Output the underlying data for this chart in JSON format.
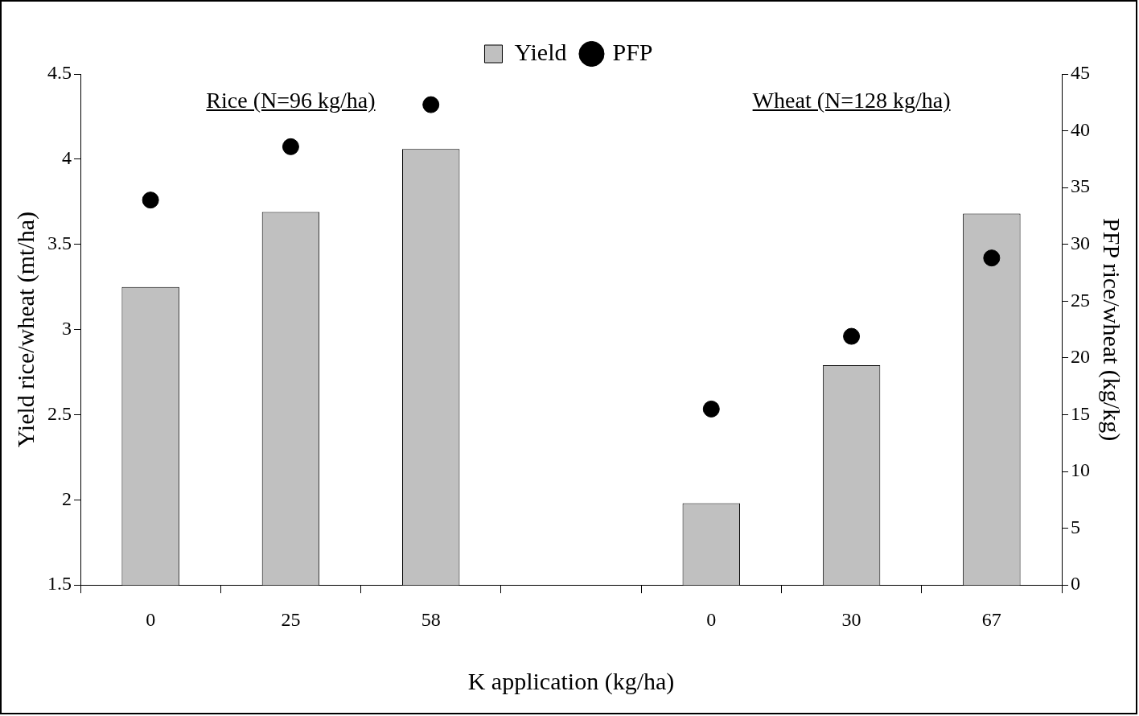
{
  "chart_data": {
    "type": "bar",
    "categories": [
      "0",
      "25",
      "58",
      null,
      "0",
      "30",
      "67"
    ],
    "xlabel": "K application (kg/ha)",
    "ylabel": "Yield rice/wheat (mt/ha)",
    "y2label": "PFP rice/wheat (kg/kg)",
    "series": [
      {
        "name": "Yield",
        "type": "bar",
        "color": "#c0c0c0",
        "values": [
          3.25,
          3.69,
          4.06,
          null,
          1.98,
          2.79,
          3.68
        ]
      },
      {
        "name": "PFP",
        "type": "scatter",
        "axis": "y2",
        "color": "#000000",
        "values": [
          33.9,
          38.6,
          42.3,
          null,
          15.5,
          21.9,
          28.8
        ]
      }
    ],
    "ylim": [
      1.5,
      4.5
    ],
    "yticks": [
      1.5,
      2,
      2.5,
      3,
      3.5,
      4,
      4.5
    ],
    "y2lim": [
      0,
      45
    ],
    "y2ticks": [
      0,
      5,
      10,
      15,
      20,
      25,
      30,
      35,
      40,
      45
    ],
    "annotations": [
      "Rice (N=96 kg/ha)",
      "Wheat (N=128 kg/ha)"
    ],
    "grid": false,
    "legend": "top",
    "marker": "circle"
  }
}
